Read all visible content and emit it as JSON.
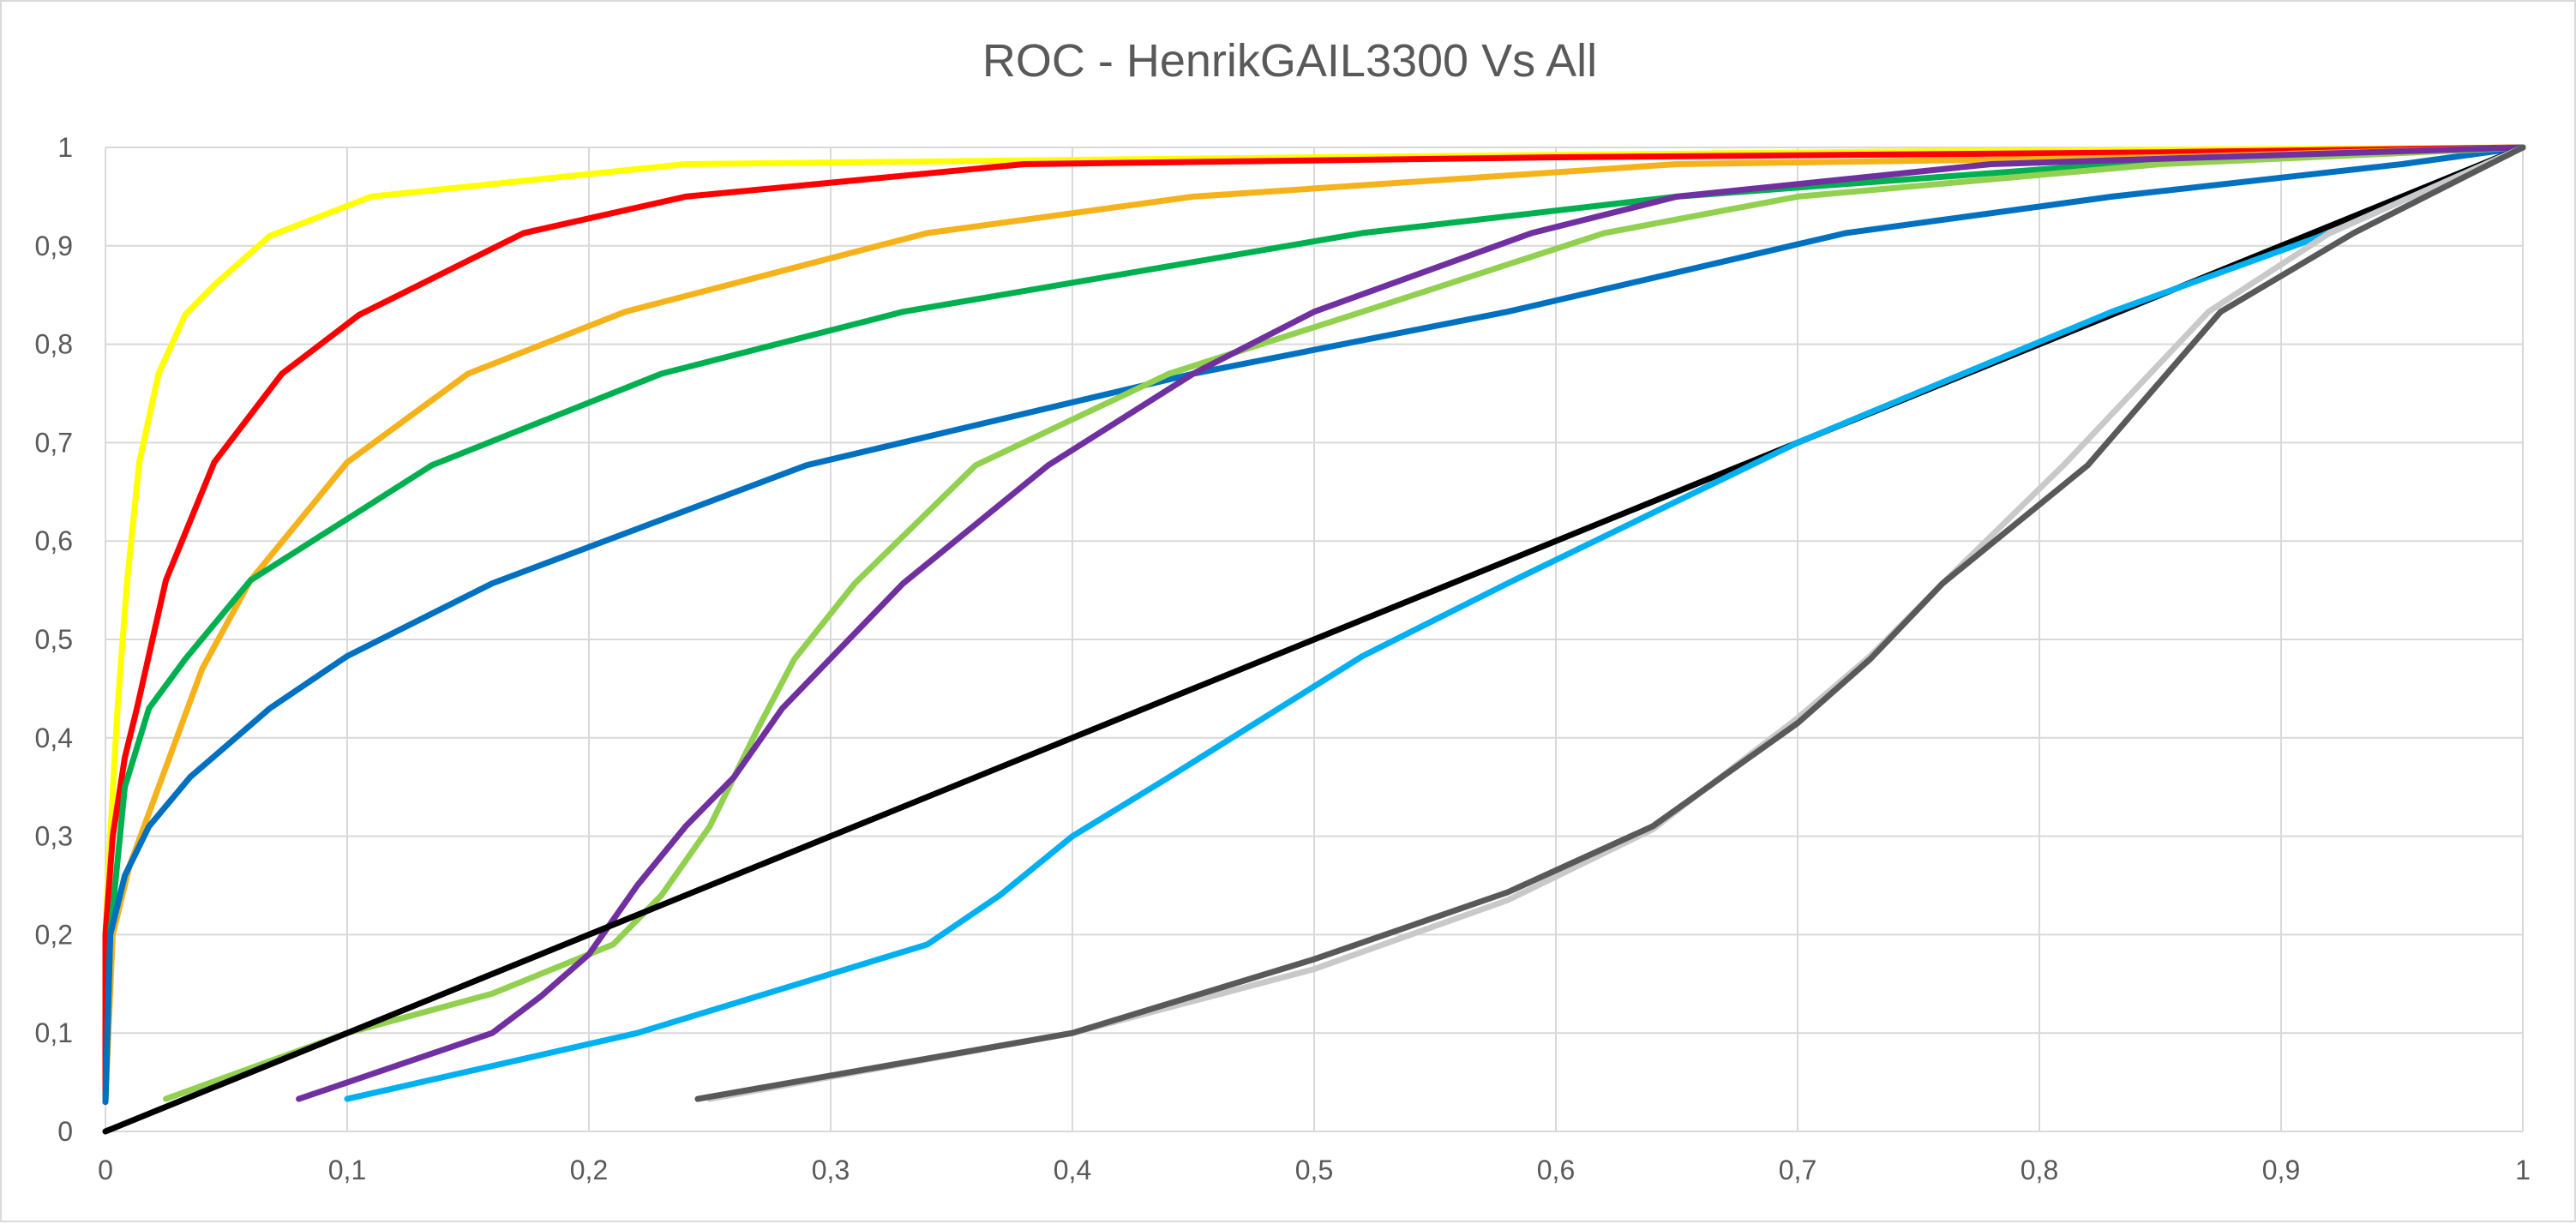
{
  "chart_data": {
    "type": "line",
    "title": "ROC - HenrikGAIL3300 Vs All",
    "xlabel": "",
    "ylabel": "",
    "xlim": [
      0,
      1
    ],
    "ylim": [
      0,
      1
    ],
    "grid": true,
    "legend": "none",
    "x_ticks": [
      "0",
      "0,1",
      "0,2",
      "0,3",
      "0,4",
      "0,5",
      "0,6",
      "0,7",
      "0,8",
      "0,9",
      "1"
    ],
    "y_ticks": [
      "0",
      "0,1",
      "0,2",
      "0,3",
      "0,4",
      "0,5",
      "0,6",
      "0,7",
      "0,8",
      "0,9",
      "1"
    ],
    "series": [
      {
        "color": "#FFFF00",
        "points": [
          [
            0,
            0.03
          ],
          [
            0,
            0.2
          ],
          [
            0.002,
            0.3
          ],
          [
            0.005,
            0.43
          ],
          [
            0.009,
            0.56
          ],
          [
            0.014,
            0.68
          ],
          [
            0.022,
            0.77
          ],
          [
            0.033,
            0.83
          ],
          [
            0.045,
            0.86
          ],
          [
            0.068,
            0.91
          ],
          [
            0.11,
            0.95
          ],
          [
            0.24,
            0.983
          ],
          [
            0.5,
            0.99
          ],
          [
            0.75,
            0.996
          ],
          [
            1,
            1
          ]
        ]
      },
      {
        "color": "#FF0000",
        "points": [
          [
            0,
            0.03
          ],
          [
            0,
            0.2
          ],
          [
            0.003,
            0.3
          ],
          [
            0.008,
            0.38
          ],
          [
            0.013,
            0.43
          ],
          [
            0.025,
            0.56
          ],
          [
            0.045,
            0.68
          ],
          [
            0.073,
            0.77
          ],
          [
            0.105,
            0.83
          ],
          [
            0.173,
            0.913
          ],
          [
            0.24,
            0.95
          ],
          [
            0.38,
            0.983
          ],
          [
            0.6,
            0.99
          ],
          [
            0.85,
            0.995
          ],
          [
            1,
            1
          ]
        ]
      },
      {
        "color": "#F5B21B",
        "points": [
          [
            0,
            0.03
          ],
          [
            0.003,
            0.2
          ],
          [
            0.01,
            0.27
          ],
          [
            0.025,
            0.37
          ],
          [
            0.04,
            0.47
          ],
          [
            0.06,
            0.56
          ],
          [
            0.1,
            0.68
          ],
          [
            0.15,
            0.77
          ],
          [
            0.215,
            0.833
          ],
          [
            0.34,
            0.913
          ],
          [
            0.45,
            0.95
          ],
          [
            0.65,
            0.983
          ],
          [
            0.85,
            0.99
          ],
          [
            1,
            1
          ]
        ]
      },
      {
        "color": "#00B050",
        "points": [
          [
            0,
            0.03
          ],
          [
            0.002,
            0.2
          ],
          [
            0.008,
            0.35
          ],
          [
            0.018,
            0.43
          ],
          [
            0.033,
            0.48
          ],
          [
            0.06,
            0.56
          ],
          [
            0.135,
            0.677
          ],
          [
            0.23,
            0.77
          ],
          [
            0.33,
            0.833
          ],
          [
            0.52,
            0.913
          ],
          [
            0.65,
            0.95
          ],
          [
            0.83,
            0.983
          ],
          [
            1,
            1
          ]
        ]
      },
      {
        "color": "#0070C0",
        "points": [
          [
            0,
            0.03
          ],
          [
            0.002,
            0.2
          ],
          [
            0.008,
            0.26
          ],
          [
            0.018,
            0.31
          ],
          [
            0.035,
            0.36
          ],
          [
            0.068,
            0.43
          ],
          [
            0.1,
            0.483
          ],
          [
            0.16,
            0.557
          ],
          [
            0.29,
            0.677
          ],
          [
            0.45,
            0.77
          ],
          [
            0.58,
            0.833
          ],
          [
            0.72,
            0.913
          ],
          [
            0.83,
            0.95
          ],
          [
            0.95,
            0.983
          ],
          [
            1,
            1
          ]
        ]
      },
      {
        "color": "#92D050",
        "points": [
          [
            0.025,
            0.033
          ],
          [
            0.1,
            0.1
          ],
          [
            0.16,
            0.14
          ],
          [
            0.21,
            0.19
          ],
          [
            0.23,
            0.24
          ],
          [
            0.25,
            0.31
          ],
          [
            0.27,
            0.41
          ],
          [
            0.285,
            0.48
          ],
          [
            0.31,
            0.557
          ],
          [
            0.36,
            0.677
          ],
          [
            0.44,
            0.77
          ],
          [
            0.52,
            0.833
          ],
          [
            0.62,
            0.913
          ],
          [
            0.7,
            0.95
          ],
          [
            0.85,
            0.983
          ],
          [
            1,
            1
          ]
        ]
      },
      {
        "color": "#7030A0",
        "points": [
          [
            0.08,
            0.033
          ],
          [
            0.16,
            0.1
          ],
          [
            0.18,
            0.137
          ],
          [
            0.2,
            0.18
          ],
          [
            0.22,
            0.25
          ],
          [
            0.24,
            0.31
          ],
          [
            0.26,
            0.36
          ],
          [
            0.28,
            0.43
          ],
          [
            0.33,
            0.557
          ],
          [
            0.39,
            0.677
          ],
          [
            0.45,
            0.77
          ],
          [
            0.5,
            0.833
          ],
          [
            0.59,
            0.913
          ],
          [
            0.65,
            0.95
          ],
          [
            0.78,
            0.983
          ],
          [
            1,
            1
          ]
        ]
      },
      {
        "color": "#000000",
        "points": [
          [
            0,
            0
          ],
          [
            1,
            1
          ]
        ]
      },
      {
        "color": "#00B0F0",
        "points": [
          [
            0.1,
            0.033
          ],
          [
            0.22,
            0.1
          ],
          [
            0.3,
            0.16
          ],
          [
            0.34,
            0.19
          ],
          [
            0.37,
            0.24
          ],
          [
            0.4,
            0.3
          ],
          [
            0.44,
            0.36
          ],
          [
            0.52,
            0.483
          ],
          [
            0.58,
            0.557
          ],
          [
            0.7,
            0.7
          ],
          [
            0.83,
            0.833
          ],
          [
            0.92,
            0.913
          ],
          [
            1,
            1
          ]
        ]
      },
      {
        "color": "#C9C9C9",
        "points": [
          [
            0.25,
            0.033
          ],
          [
            0.4,
            0.1
          ],
          [
            0.5,
            0.165
          ],
          [
            0.58,
            0.235
          ],
          [
            0.64,
            0.307
          ],
          [
            0.7,
            0.42
          ],
          [
            0.73,
            0.483
          ],
          [
            0.76,
            0.557
          ],
          [
            0.81,
            0.677
          ],
          [
            0.87,
            0.833
          ],
          [
            0.92,
            0.913
          ],
          [
            1,
            1
          ]
        ]
      },
      {
        "color": "#595959",
        "points": [
          [
            0.245,
            0.033
          ],
          [
            0.4,
            0.1
          ],
          [
            0.5,
            0.175
          ],
          [
            0.58,
            0.243
          ],
          [
            0.64,
            0.31
          ],
          [
            0.7,
            0.415
          ],
          [
            0.73,
            0.48
          ],
          [
            0.76,
            0.557
          ],
          [
            0.82,
            0.677
          ],
          [
            0.875,
            0.833
          ],
          [
            0.93,
            0.913
          ],
          [
            1,
            1
          ]
        ]
      }
    ]
  }
}
